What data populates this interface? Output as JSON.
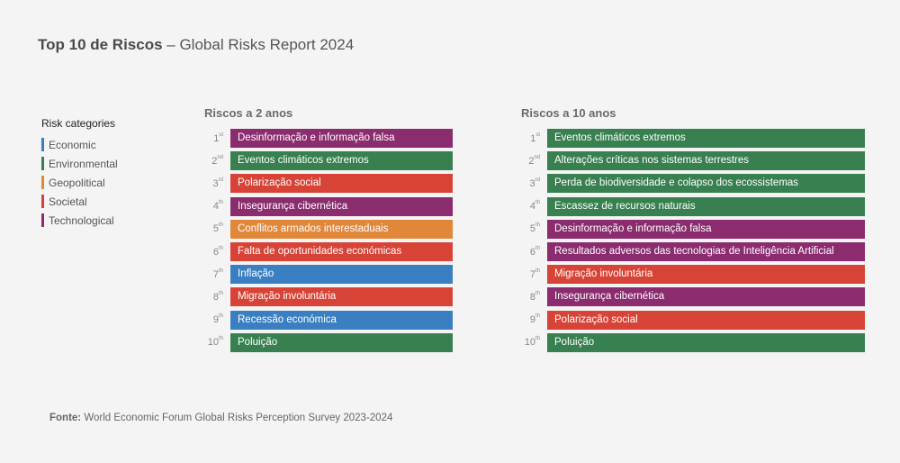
{
  "title": {
    "bold": "Top 10 de Riscos",
    "rest": " – Global Risks Report 2024"
  },
  "legend": {
    "title": "Risk categories",
    "items": [
      {
        "key": "economic",
        "label": "Economic",
        "color": "#3a7fc1"
      },
      {
        "key": "environmental",
        "label": "Environmental",
        "color": "#388050"
      },
      {
        "key": "geopolitical",
        "label": "Geopolitical",
        "color": "#e0873a"
      },
      {
        "key": "societal",
        "label": "Societal",
        "color": "#d74437"
      },
      {
        "key": "technological",
        "label": "Technological",
        "color": "#8a2c6e"
      }
    ]
  },
  "chart_data": [
    {
      "type": "table",
      "title": "Riscos a 2 anos",
      "rows": [
        {
          "rank": "1",
          "suffix": "st",
          "label": "Desinformação e informação falsa",
          "category": "technological"
        },
        {
          "rank": "2",
          "suffix": "nd",
          "label": "Eventos climáticos extremos",
          "category": "environmental"
        },
        {
          "rank": "3",
          "suffix": "rd",
          "label": "Polarização social",
          "category": "societal"
        },
        {
          "rank": "4",
          "suffix": "th",
          "label": "Insegurança cibernética",
          "category": "technological"
        },
        {
          "rank": "5",
          "suffix": "th",
          "label": "Conflitos armados interestaduais",
          "category": "geopolitical"
        },
        {
          "rank": "6",
          "suffix": "th",
          "label": "Falta de oportunidades económicas",
          "category": "societal"
        },
        {
          "rank": "7",
          "suffix": "th",
          "label": "Inflação",
          "category": "economic"
        },
        {
          "rank": "8",
          "suffix": "th",
          "label": "Migração involuntária",
          "category": "societal"
        },
        {
          "rank": "9",
          "suffix": "th",
          "label": "Recessão económica",
          "category": "economic"
        },
        {
          "rank": "10",
          "suffix": "th",
          "label": "Poluição",
          "category": "environmental"
        }
      ]
    },
    {
      "type": "table",
      "title": "Riscos a 10 anos",
      "rows": [
        {
          "rank": "1",
          "suffix": "st",
          "label": "Eventos climáticos extremos",
          "category": "environmental"
        },
        {
          "rank": "2",
          "suffix": "nd",
          "label": "Alterações críticas nos sistemas terrestres",
          "category": "environmental"
        },
        {
          "rank": "3",
          "suffix": "rd",
          "label": "Perda de biodiversidade e colapso dos ecossistemas",
          "category": "environmental"
        },
        {
          "rank": "4",
          "suffix": "th",
          "label": "Escassez de recursos naturais",
          "category": "environmental"
        },
        {
          "rank": "5",
          "suffix": "th",
          "label": "Desinformação e informação falsa",
          "category": "technological"
        },
        {
          "rank": "6",
          "suffix": "th",
          "label": "Resultados adversos das tecnologias de Inteligência Artificial",
          "category": "technological"
        },
        {
          "rank": "7",
          "suffix": "th",
          "label": "Migração involuntária",
          "category": "societal"
        },
        {
          "rank": "8",
          "suffix": "th",
          "label": "Insegurança cibernética",
          "category": "technological"
        },
        {
          "rank": "9",
          "suffix": "th",
          "label": "Polarização social",
          "category": "societal"
        },
        {
          "rank": "10",
          "suffix": "th",
          "label": "Poluição",
          "category": "environmental"
        }
      ]
    }
  ],
  "source": {
    "bold": "Fonte:",
    "rest": " World Economic Forum Global Risks Perception Survey 2023-2024"
  }
}
